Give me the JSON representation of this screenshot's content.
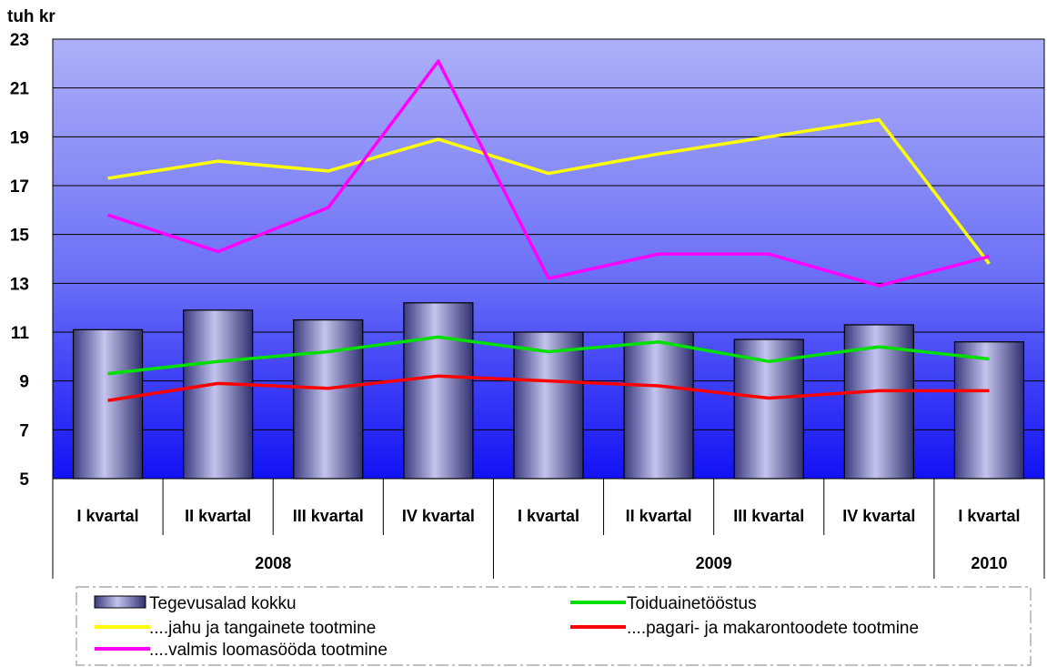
{
  "chart_data": {
    "type": "bar",
    "unit_label": "tuh kr",
    "ylim": [
      5,
      23
    ],
    "y_ticks": [
      5,
      7,
      9,
      11,
      13,
      15,
      17,
      19,
      21,
      23
    ],
    "grid": true,
    "legend_position": "bottom",
    "categories": [
      "I kvartal",
      "II kvartal",
      "III kvartal",
      "IV kvartal",
      "I kvartal",
      "II kvartal",
      "III kvartal",
      "IV kvartal",
      "I kvartal"
    ],
    "year_groups": [
      {
        "label": "2008",
        "count": 4
      },
      {
        "label": "2009",
        "count": 4
      },
      {
        "label": "2010",
        "count": 1
      }
    ],
    "series": [
      {
        "name": "Tegevusalad kokku",
        "kind": "bar",
        "color": "#9090c8",
        "values": [
          11.1,
          11.9,
          11.5,
          12.2,
          11.0,
          11.0,
          10.7,
          11.3,
          10.6
        ]
      },
      {
        "name": "Toiduainetööstus",
        "kind": "line",
        "color": "#00e000",
        "values": [
          9.3,
          9.8,
          10.2,
          10.8,
          10.2,
          10.6,
          9.8,
          10.4,
          9.9
        ]
      },
      {
        "name": "....jahu ja tangainete tootmine",
        "kind": "line",
        "color": "#ffff00",
        "values": [
          17.3,
          18.0,
          17.6,
          18.9,
          17.5,
          18.3,
          19.0,
          19.7,
          13.8
        ]
      },
      {
        "name": "....pagari- ja makarontoodete tootmine",
        "kind": "line",
        "color": "#ff0000",
        "values": [
          8.2,
          8.9,
          8.7,
          9.2,
          9.0,
          8.8,
          8.3,
          8.6,
          8.6
        ]
      },
      {
        "name": "....valmis loomasööda tootmine",
        "kind": "line",
        "color": "#ff00ff",
        "values": [
          15.8,
          14.3,
          16.1,
          22.1,
          13.2,
          14.2,
          14.2,
          12.9,
          14.1
        ]
      }
    ]
  }
}
